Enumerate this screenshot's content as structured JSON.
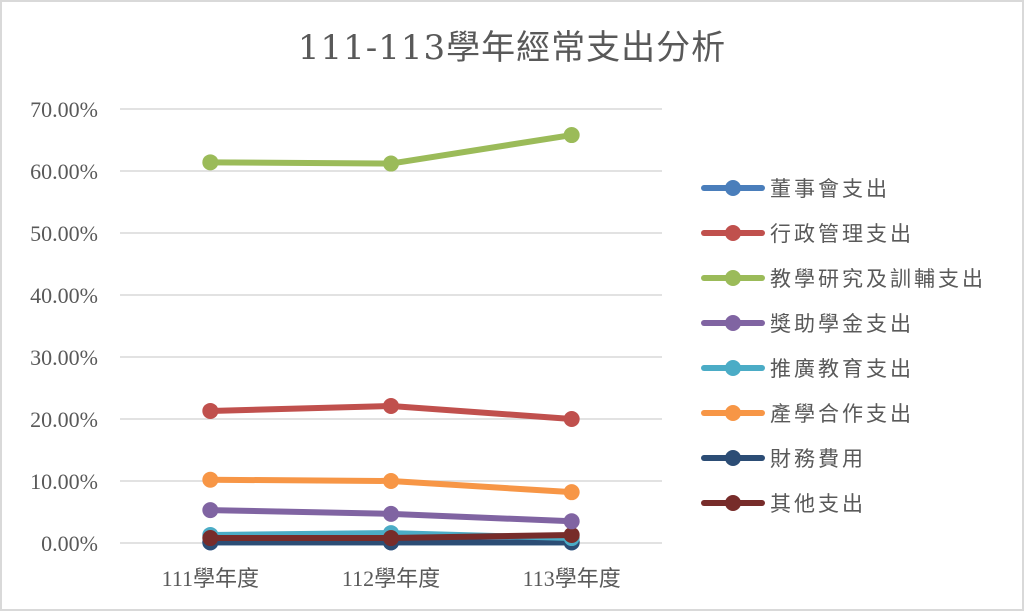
{
  "chart_data": {
    "type": "line",
    "title": "111-113學年經常支出分析",
    "xlabel": "",
    "ylabel": "",
    "ylim": [
      0,
      70
    ],
    "y_tick_labels": [
      "0.00%",
      "10.00%",
      "20.00%",
      "30.00%",
      "40.00%",
      "50.00%",
      "60.00%",
      "70.00%"
    ],
    "y_ticks": [
      0,
      10,
      20,
      30,
      40,
      50,
      60,
      70
    ],
    "grid": true,
    "legend_position": "right",
    "categories": [
      "111學年度",
      "112學年度",
      "113學年度"
    ],
    "series": [
      {
        "name": "董事會支出",
        "color": "#4a7ebb",
        "values": [
          0.1,
          0.1,
          0.1
        ]
      },
      {
        "name": "行政管理支出",
        "color": "#c0504d",
        "values": [
          21.3,
          22.1,
          20.0
        ]
      },
      {
        "name": "教學研究及訓輔支出",
        "color": "#9bbb59",
        "values": [
          61.4,
          61.2,
          65.8
        ]
      },
      {
        "name": "獎助學金支出",
        "color": "#8064a2",
        "values": [
          5.3,
          4.7,
          3.5
        ]
      },
      {
        "name": "推廣教育支出",
        "color": "#4bacc6",
        "values": [
          1.3,
          1.6,
          0.8
        ]
      },
      {
        "name": "產學合作支出",
        "color": "#f79646",
        "values": [
          10.2,
          10.0,
          8.2
        ]
      },
      {
        "name": "財務費用",
        "color": "#2c4d75",
        "values": [
          0.1,
          0.1,
          0.1
        ]
      },
      {
        "name": "其他支出",
        "color": "#772c2a",
        "values": [
          0.8,
          0.8,
          1.3
        ]
      }
    ]
  }
}
